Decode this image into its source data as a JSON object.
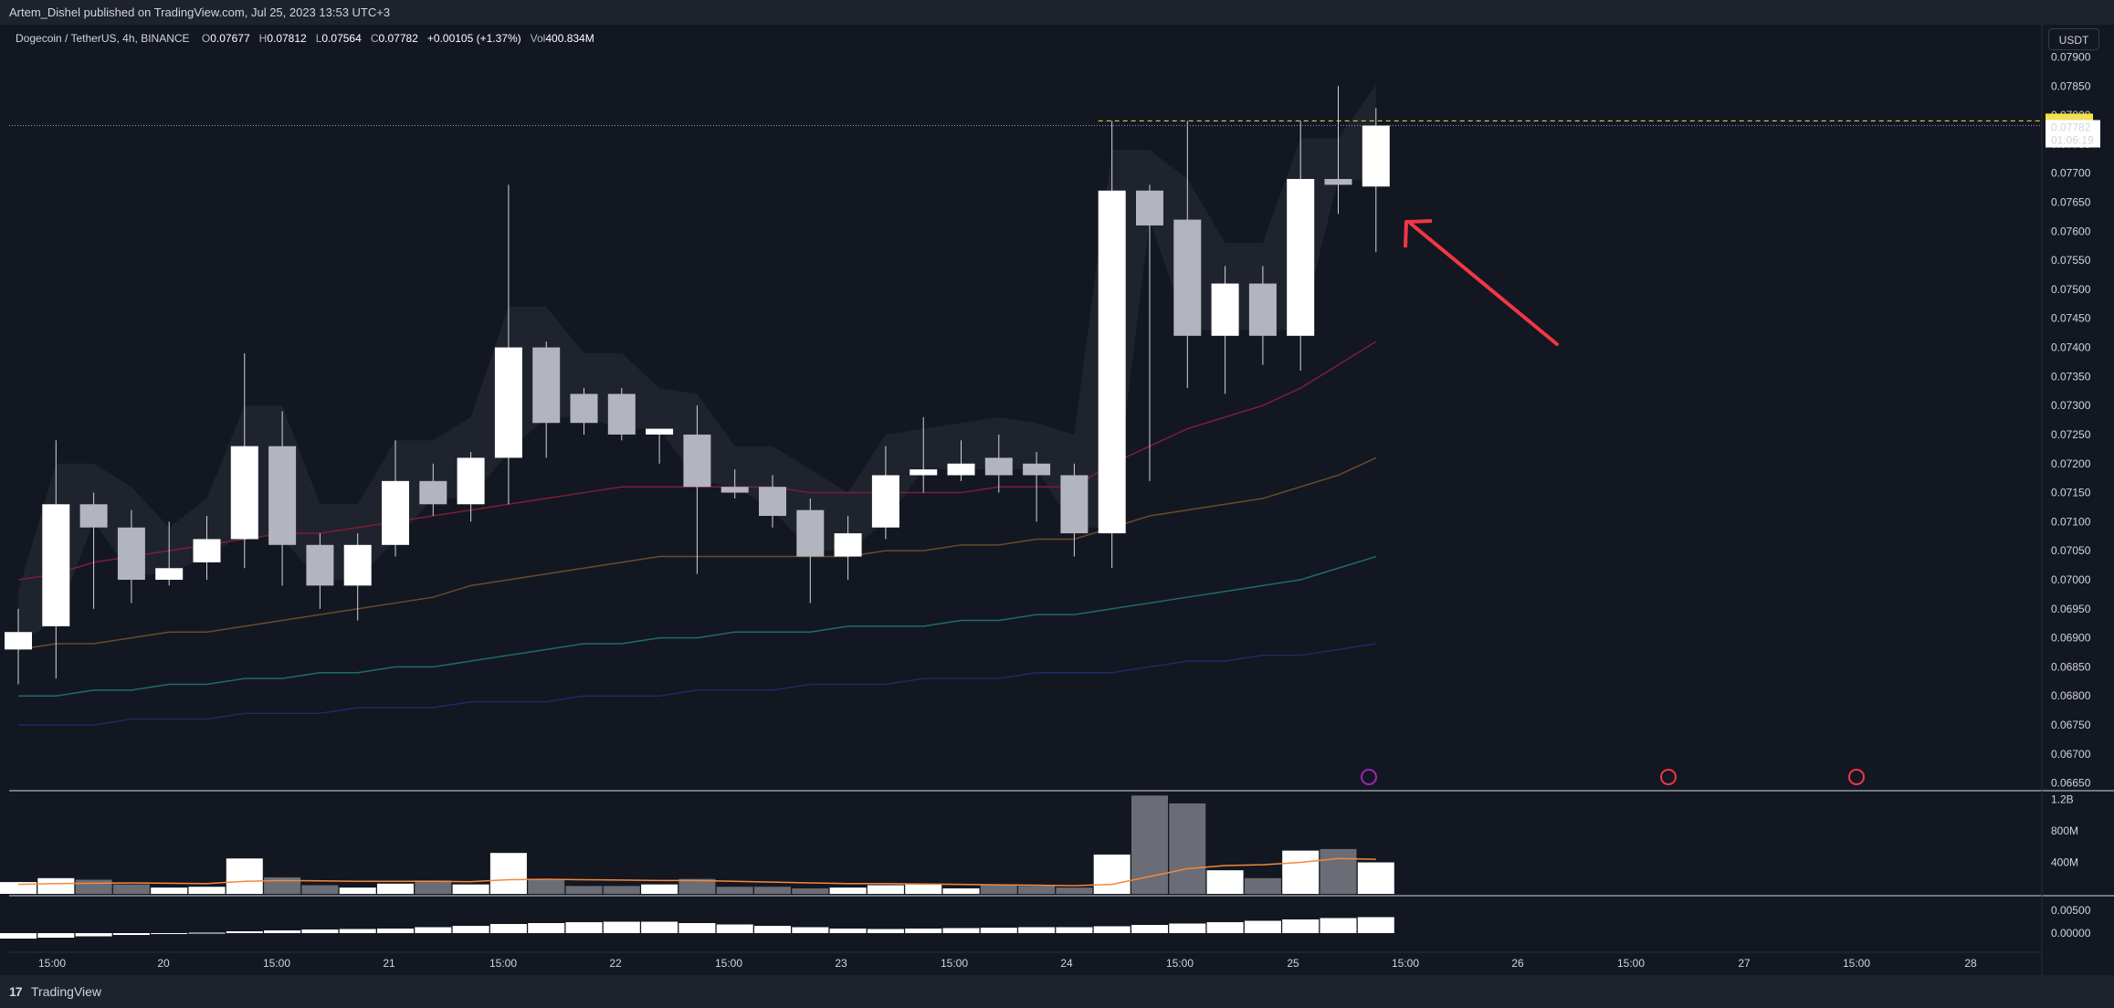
{
  "header": {
    "published_text": "Artem_Dishel published on TradingView.com, Jul 25, 2023 13:53 UTC+3"
  },
  "legend": {
    "symbol": "Dogecoin / TetherUS, 4h, BINANCE",
    "o_label": "O",
    "o_value": "0.07677",
    "h_label": "H",
    "h_value": "0.07812",
    "l_label": "L",
    "l_value": "0.07564",
    "c_label": "C",
    "c_value": "0.07782",
    "change": "+0.00105 (+1.37%)",
    "vol_label": "Vol",
    "vol_value": "400.834M"
  },
  "currency_button": "USDT",
  "price_badges": {
    "line_price": "0.07790",
    "last_price": "0.07782",
    "countdown": "01:06:19"
  },
  "footer": {
    "brand": "TradingView",
    "logo_glyph": "17"
  },
  "colors": {
    "background": "#131722",
    "bull_candle": "#ffffff",
    "bear_candle": "#b2b5be",
    "line_badge": "#f7e33b",
    "arrow": "#f23645",
    "ma_short": "#7a1f35",
    "ma_mid": "#6b4a2a",
    "ma_long": "#1e6c6b",
    "ma_longest": "#1e2a66",
    "volume_ma": "#f5883a",
    "event_icon_1": "#9c27b0",
    "event_icon_2": "#f23645"
  },
  "chart_data": {
    "type": "candlestick",
    "symbol": "DOGE/USDT",
    "timeframe": "4h",
    "price_axis_ticks": [
      "0.07900",
      "0.07850",
      "0.07800",
      "0.07750",
      "0.07700",
      "0.07650",
      "0.07600",
      "0.07550",
      "0.07500",
      "0.07450",
      "0.07400",
      "0.07350",
      "0.07300",
      "0.07250",
      "0.07200",
      "0.07150",
      "0.07100",
      "0.07050",
      "0.07000",
      "0.06950",
      "0.06900",
      "0.06850",
      "0.06800",
      "0.06750",
      "0.06700",
      "0.06650"
    ],
    "ylim": [
      0.0664,
      0.0794
    ],
    "time_axis_labels": [
      "15:00",
      "20",
      "15:00",
      "21",
      "15:00",
      "22",
      "15:00",
      "23",
      "15:00",
      "24",
      "15:00",
      "25",
      "15:00",
      "26",
      "15:00",
      "27",
      "15:00",
      "28"
    ],
    "volume_axis_ticks": [
      "1.2B",
      "800M",
      "400M"
    ],
    "indicator_axis_ticks": [
      "0.00500",
      "0.00000"
    ],
    "candles": [
      {
        "o": 0.0688,
        "h": 0.0695,
        "l": 0.0682,
        "c": 0.0691
      },
      {
        "o": 0.0692,
        "h": 0.0724,
        "l": 0.0683,
        "c": 0.0713
      },
      {
        "o": 0.0713,
        "h": 0.0715,
        "l": 0.0695,
        "c": 0.0709
      },
      {
        "o": 0.0709,
        "h": 0.0712,
        "l": 0.0696,
        "c": 0.07
      },
      {
        "o": 0.07,
        "h": 0.071,
        "l": 0.0699,
        "c": 0.0702
      },
      {
        "o": 0.0703,
        "h": 0.0711,
        "l": 0.07,
        "c": 0.0707
      },
      {
        "o": 0.0707,
        "h": 0.0739,
        "l": 0.0702,
        "c": 0.0723
      },
      {
        "o": 0.0723,
        "h": 0.0729,
        "l": 0.0699,
        "c": 0.0706
      },
      {
        "o": 0.0706,
        "h": 0.0708,
        "l": 0.0695,
        "c": 0.0699
      },
      {
        "o": 0.0699,
        "h": 0.0708,
        "l": 0.0693,
        "c": 0.0706
      },
      {
        "o": 0.0706,
        "h": 0.0724,
        "l": 0.0704,
        "c": 0.0717
      },
      {
        "o": 0.0717,
        "h": 0.072,
        "l": 0.0711,
        "c": 0.0713
      },
      {
        "o": 0.0713,
        "h": 0.0722,
        "l": 0.071,
        "c": 0.0721
      },
      {
        "o": 0.0721,
        "h": 0.0768,
        "l": 0.0713,
        "c": 0.074
      },
      {
        "o": 0.074,
        "h": 0.0741,
        "l": 0.0721,
        "c": 0.0727
      },
      {
        "o": 0.0732,
        "h": 0.0733,
        "l": 0.0725,
        "c": 0.0727
      },
      {
        "o": 0.0732,
        "h": 0.0733,
        "l": 0.0724,
        "c": 0.0725
      },
      {
        "o": 0.0725,
        "h": 0.0726,
        "l": 0.072,
        "c": 0.0726
      },
      {
        "o": 0.0725,
        "h": 0.073,
        "l": 0.0701,
        "c": 0.0716
      },
      {
        "o": 0.0716,
        "h": 0.0719,
        "l": 0.0714,
        "c": 0.0715
      },
      {
        "o": 0.0716,
        "h": 0.0718,
        "l": 0.0709,
        "c": 0.0711
      },
      {
        "o": 0.0712,
        "h": 0.0714,
        "l": 0.0696,
        "c": 0.0704
      },
      {
        "o": 0.0704,
        "h": 0.0711,
        "l": 0.07,
        "c": 0.0708
      },
      {
        "o": 0.0709,
        "h": 0.0723,
        "l": 0.0707,
        "c": 0.0718
      },
      {
        "o": 0.0718,
        "h": 0.0728,
        "l": 0.0715,
        "c": 0.0719
      },
      {
        "o": 0.0718,
        "h": 0.0724,
        "l": 0.0717,
        "c": 0.072
      },
      {
        "o": 0.0721,
        "h": 0.0725,
        "l": 0.0715,
        "c": 0.0718
      },
      {
        "o": 0.072,
        "h": 0.0722,
        "l": 0.071,
        "c": 0.0718
      },
      {
        "o": 0.0718,
        "h": 0.072,
        "l": 0.0704,
        "c": 0.0708
      },
      {
        "o": 0.0708,
        "h": 0.0779,
        "l": 0.0702,
        "c": 0.0767
      },
      {
        "o": 0.0767,
        "h": 0.0768,
        "l": 0.0717,
        "c": 0.0761
      },
      {
        "o": 0.0762,
        "h": 0.0779,
        "l": 0.0733,
        "c": 0.0742
      },
      {
        "o": 0.0742,
        "h": 0.0754,
        "l": 0.0732,
        "c": 0.0751
      },
      {
        "o": 0.0751,
        "h": 0.0754,
        "l": 0.0737,
        "c": 0.0742
      },
      {
        "o": 0.0742,
        "h": 0.0779,
        "l": 0.0736,
        "c": 0.0769
      },
      {
        "o": 0.0769,
        "h": 0.0785,
        "l": 0.0763,
        "c": 0.0768
      },
      {
        "o": 0.07677,
        "h": 0.07812,
        "l": 0.07564,
        "c": 0.07782
      }
    ],
    "volume_series": [
      {
        "name": "Volume",
        "values": [
          150,
          200,
          180,
          120,
          80,
          90,
          450,
          210,
          110,
          80,
          130,
          170,
          120,
          520,
          190,
          100,
          100,
          120,
          190,
          90,
          90,
          70,
          80,
          110,
          120,
          70,
          110,
          100,
          80,
          500,
          1250,
          1150,
          300,
          200,
          550,
          570,
          400
        ]
      }
    ],
    "indicator_series": [
      {
        "name": "Histogram",
        "values": [
          -0.0012,
          -0.001,
          -0.0007,
          -0.0004,
          -0.0002,
          0.0001,
          0.0004,
          0.0006,
          0.0008,
          0.0009,
          0.001,
          0.0013,
          0.0016,
          0.002,
          0.0022,
          0.0024,
          0.0025,
          0.0025,
          0.0022,
          0.0019,
          0.0016,
          0.0013,
          0.001,
          0.0009,
          0.001,
          0.0011,
          0.0012,
          0.0013,
          0.0013,
          0.0015,
          0.0018,
          0.0021,
          0.0024,
          0.0027,
          0.003,
          0.0033,
          0.0035
        ]
      }
    ],
    "moving_averages": [
      {
        "name": "MA short",
        "values": [
          0.07,
          0.0701,
          0.0703,
          0.0704,
          0.0705,
          0.0706,
          0.0707,
          0.0708,
          0.0708,
          0.0709,
          0.071,
          0.0711,
          0.0712,
          0.0713,
          0.0714,
          0.0715,
          0.0716,
          0.0716,
          0.0716,
          0.0716,
          0.0716,
          0.0715,
          0.0715,
          0.0715,
          0.0715,
          0.0715,
          0.0716,
          0.0716,
          0.0716,
          0.072,
          0.0723,
          0.0726,
          0.0728,
          0.073,
          0.0733,
          0.0737,
          0.0741
        ]
      },
      {
        "name": "MA mid",
        "values": [
          0.0688,
          0.0689,
          0.0689,
          0.069,
          0.0691,
          0.0691,
          0.0692,
          0.0693,
          0.0694,
          0.0695,
          0.0696,
          0.0697,
          0.0699,
          0.07,
          0.0701,
          0.0702,
          0.0703,
          0.0704,
          0.0704,
          0.0704,
          0.0704,
          0.0704,
          0.0704,
          0.0705,
          0.0705,
          0.0706,
          0.0706,
          0.0707,
          0.0707,
          0.0709,
          0.0711,
          0.0712,
          0.0713,
          0.0714,
          0.0716,
          0.0718,
          0.0721
        ]
      },
      {
        "name": "MA long",
        "values": [
          0.068,
          0.068,
          0.0681,
          0.0681,
          0.0682,
          0.0682,
          0.0683,
          0.0683,
          0.0684,
          0.0684,
          0.0685,
          0.0685,
          0.0686,
          0.0687,
          0.0688,
          0.0689,
          0.0689,
          0.069,
          0.069,
          0.0691,
          0.0691,
          0.0691,
          0.0692,
          0.0692,
          0.0692,
          0.0693,
          0.0693,
          0.0694,
          0.0694,
          0.0695,
          0.0696,
          0.0697,
          0.0698,
          0.0699,
          0.07,
          0.0702,
          0.0704
        ]
      },
      {
        "name": "MA longest",
        "values": [
          0.0675,
          0.0675,
          0.0675,
          0.0676,
          0.0676,
          0.0676,
          0.0677,
          0.0677,
          0.0677,
          0.0678,
          0.0678,
          0.0678,
          0.0679,
          0.0679,
          0.0679,
          0.068,
          0.068,
          0.068,
          0.0681,
          0.0681,
          0.0681,
          0.0682,
          0.0682,
          0.0682,
          0.0683,
          0.0683,
          0.0683,
          0.0684,
          0.0684,
          0.0684,
          0.0685,
          0.0686,
          0.0686,
          0.0687,
          0.0687,
          0.0688,
          0.0689
        ]
      }
    ],
    "volume_ma": [
      120,
      130,
      135,
      140,
      135,
      130,
      160,
      170,
      165,
      160,
      160,
      160,
      155,
      180,
      185,
      180,
      175,
      170,
      170,
      160,
      150,
      140,
      130,
      130,
      125,
      120,
      115,
      110,
      105,
      120,
      220,
      320,
      360,
      370,
      400,
      450,
      440
    ]
  }
}
